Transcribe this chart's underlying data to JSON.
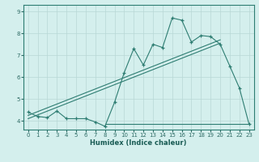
{
  "title": "",
  "xlabel": "Humidex (Indice chaleur)",
  "ylabel": "",
  "bg_color": "#d4efed",
  "line_color": "#2e7d72",
  "grid_color": "#b8d8d5",
  "xlim": [
    -0.5,
    23.5
  ],
  "ylim": [
    3.6,
    9.3
  ],
  "xticks": [
    0,
    1,
    2,
    3,
    4,
    5,
    6,
    7,
    8,
    9,
    10,
    11,
    12,
    13,
    14,
    15,
    16,
    17,
    18,
    19,
    20,
    21,
    22,
    23
  ],
  "yticks": [
    4,
    5,
    6,
    7,
    8,
    9
  ],
  "data_line": {
    "x": [
      0,
      1,
      2,
      3,
      4,
      5,
      6,
      7,
      8,
      9,
      10,
      11,
      12,
      13,
      14,
      15,
      16,
      17,
      18,
      19,
      20,
      21,
      22,
      23
    ],
    "y": [
      4.4,
      4.2,
      4.15,
      4.45,
      4.1,
      4.1,
      4.1,
      3.95,
      3.75,
      4.85,
      6.2,
      7.3,
      6.55,
      7.5,
      7.35,
      8.7,
      8.6,
      7.6,
      7.9,
      7.85,
      7.5,
      6.5,
      5.5,
      3.85
    ]
  },
  "reg_line1": {
    "x": [
      0,
      20
    ],
    "y": [
      4.1,
      7.55
    ]
  },
  "reg_line2": {
    "x": [
      0,
      20
    ],
    "y": [
      4.25,
      7.7
    ]
  },
  "flat_line": {
    "x": [
      8,
      23
    ],
    "y": [
      3.85,
      3.85
    ]
  }
}
